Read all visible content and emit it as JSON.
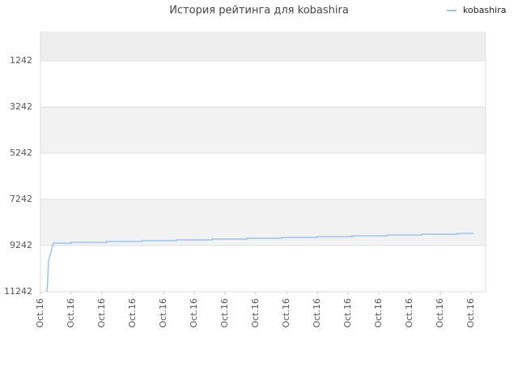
{
  "chart_data": {
    "type": "line",
    "title": "История рейтинга для kobashira",
    "xlim": [
      0,
      14.47
    ],
    "xticks": [
      {
        "value": 0,
        "label": "Oct.16"
      },
      {
        "value": 1,
        "label": "Oct.16"
      },
      {
        "value": 2,
        "label": "Oct.16"
      },
      {
        "value": 3,
        "label": "Oct.16"
      },
      {
        "value": 4,
        "label": "Oct.16"
      },
      {
        "value": 5,
        "label": "Oct.16"
      },
      {
        "value": 6,
        "label": "Oct.16"
      },
      {
        "value": 7,
        "label": "Oct.16"
      },
      {
        "value": 8,
        "label": "Oct.16"
      },
      {
        "value": 9,
        "label": "Oct.16"
      },
      {
        "value": 10,
        "label": "Oct.16"
      },
      {
        "value": 11,
        "label": "Oct.16"
      },
      {
        "value": 12,
        "label": "Oct.16"
      },
      {
        "value": 13,
        "label": "Oct.16"
      },
      {
        "value": 14,
        "label": "Oct.16"
      }
    ],
    "ylim": [
      11242,
      14
    ],
    "yticks": [
      11242,
      9242,
      7242,
      5242,
      3242,
      1242
    ],
    "grid": true,
    "legend": "top-right",
    "series": [
      {
        "name": "kobashira",
        "color": "#99c4ee",
        "x": [
          0.21,
          0.24,
          0.26,
          0.42,
          1.0,
          1.0,
          2.13,
          2.13,
          3.29,
          3.29,
          4.42,
          4.42,
          5.58,
          5.58,
          6.71,
          6.71,
          7.84,
          7.84,
          9.0,
          9.0,
          10.13,
          10.13,
          11.26,
          11.26,
          12.39,
          12.39,
          13.55,
          13.55,
          14.08
        ],
        "values": [
          11242,
          10610,
          9909,
          9137,
          9137,
          9102,
          9102,
          9067,
          9067,
          9032,
          9032,
          8996,
          8996,
          8961,
          8961,
          8926,
          8926,
          8891,
          8891,
          8856,
          8856,
          8821,
          8821,
          8786,
          8786,
          8751,
          8751,
          8716,
          8716
        ]
      }
    ]
  }
}
